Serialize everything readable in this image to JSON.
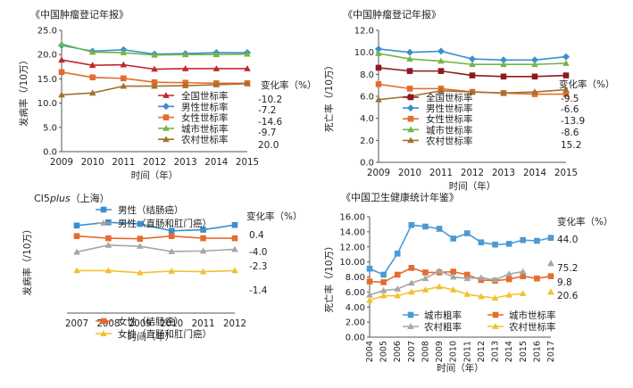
{
  "chart_data": [
    {
      "type": "line",
      "title": "《中国肿瘤登记年报》",
      "xlabel": "时间（年）",
      "ylabel": "发病率（/10万）",
      "ylim": [
        0,
        25
      ],
      "yticks": [
        "0.0",
        "5.0",
        "10.0",
        "15.0",
        "20.0",
        "25.0"
      ],
      "x": [
        "2009",
        "2010",
        "2011",
        "2012",
        "2013",
        "2014",
        "2015"
      ],
      "change_header": "变化率（%）",
      "series": [
        {
          "name": "全国世标率",
          "color": "#c0282d",
          "marker": "triangle",
          "values": [
            18.9,
            17.8,
            17.9,
            17.0,
            17.1,
            17.1,
            17.1
          ],
          "change": "-10.2"
        },
        {
          "name": "男性世标率",
          "color": "#3a8fd1",
          "marker": "diamond",
          "values": [
            21.9,
            20.7,
            21.0,
            20.1,
            20.2,
            20.4,
            20.4
          ],
          "change": "-7.2"
        },
        {
          "name": "女性世标率",
          "color": "#e46c2f",
          "marker": "square",
          "values": [
            16.4,
            15.3,
            15.1,
            14.3,
            14.2,
            14.1,
            14.1
          ],
          "change": "-14.6"
        },
        {
          "name": "城市世标率",
          "color": "#74b545",
          "marker": "triangle",
          "values": [
            22.2,
            20.5,
            20.4,
            19.9,
            20.0,
            20.0,
            20.1
          ],
          "change": "-9.7"
        },
        {
          "name": "农村世标率",
          "color": "#a0722e",
          "marker": "triangle",
          "values": [
            11.7,
            12.1,
            13.5,
            13.5,
            13.6,
            13.8,
            14.0
          ],
          "change": "20.0"
        }
      ]
    },
    {
      "type": "line",
      "title": "《中国肿瘤登记年报》",
      "xlabel": "时间（年）",
      "ylabel": "死亡率（/10万）",
      "ylim": [
        0,
        12
      ],
      "yticks": [
        "0.0",
        "2.0",
        "4.0",
        "6.0",
        "8.0",
        "10.0",
        "12.0"
      ],
      "x": [
        "2009",
        "2010",
        "2011",
        "2012",
        "2013",
        "2014",
        "2015"
      ],
      "change_header": "变化率（%）",
      "series": [
        {
          "name": "全国世标率",
          "color": "#8b1a1f",
          "marker": "square",
          "values": [
            8.6,
            8.3,
            8.3,
            7.9,
            7.8,
            7.8,
            7.9
          ],
          "change": "-9.5"
        },
        {
          "name": "男性世标率",
          "color": "#3a8fd1",
          "marker": "diamond",
          "values": [
            10.3,
            10.0,
            10.1,
            9.4,
            9.3,
            9.3,
            9.6
          ],
          "change": "-6.6"
        },
        {
          "name": "女性世标率",
          "color": "#e46c2f",
          "marker": "square",
          "values": [
            7.1,
            6.7,
            6.7,
            6.4,
            6.3,
            6.2,
            6.2
          ],
          "change": "-13.9"
        },
        {
          "name": "城市世标率",
          "color": "#74b545",
          "marker": "triangle",
          "values": [
            9.9,
            9.4,
            9.2,
            8.9,
            8.9,
            8.9,
            9.0
          ],
          "change": "-8.6"
        },
        {
          "name": "农村世标率",
          "color": "#a0722e",
          "marker": "triangle",
          "values": [
            5.7,
            6.0,
            6.5,
            6.4,
            6.3,
            6.4,
            6.6
          ],
          "change": "15.2"
        }
      ]
    },
    {
      "type": "line",
      "title_parts": [
        "CI5",
        "plus",
        "（上海）"
      ],
      "xlabel": "时间（年）",
      "ylabel": "发病率（/10万）",
      "ylim": [
        0,
        20
      ],
      "x": [
        "2007",
        "2008",
        "2009",
        "2010",
        "2011",
        "2012"
      ],
      "change_header": "变化率（%）",
      "series": [
        {
          "name": "男性（结肠癌）",
          "color": "#3a8fd1",
          "marker": "square",
          "values": [
            16.5,
            17.1,
            16.8,
            15.5,
            15.7,
            16.6
          ],
          "change": "0.4"
        },
        {
          "name": "男性（直肠和肛门癌）",
          "color": "#a6a6a6",
          "marker": "triangle",
          "values": [
            11.5,
            12.8,
            12.6,
            11.6,
            11.7,
            12.0
          ],
          "change": "-4.0"
        },
        {
          "name": "女性（结肠癌）",
          "color": "#e46c2f",
          "marker": "square",
          "values": [
            14.5,
            14.1,
            14.0,
            14.5,
            14.1,
            14.1
          ],
          "change": "-2.3"
        },
        {
          "name": "女性（直肠和肛门癌）",
          "color": "#f2c12e",
          "marker": "triangle",
          "values": [
            8.0,
            8.0,
            7.6,
            7.9,
            7.8,
            8.0
          ],
          "change": "-1.4"
        }
      ]
    },
    {
      "type": "line",
      "title": "《中国卫生健康统计年鉴》",
      "xlabel": "时间（年）",
      "ylabel": "死亡率（/10万）",
      "ylim": [
        0,
        16
      ],
      "yticks": [
        "0.00",
        "2.00",
        "4.00",
        "6.00",
        "8.00",
        "10.00",
        "12.00",
        "14.00",
        "16.00"
      ],
      "x": [
        "2004",
        "2005",
        "2006",
        "2007",
        "2008",
        "2009",
        "2010",
        "2011",
        "2012",
        "2013",
        "2014",
        "2015",
        "2016",
        "2017"
      ],
      "change_header": "变化率（%）",
      "series": [
        {
          "name": "城市粗率",
          "color": "#4a9ad4",
          "marker": "square",
          "values": [
            9.1,
            8.3,
            11.1,
            14.9,
            14.7,
            14.4,
            13.1,
            13.8,
            12.6,
            12.3,
            12.4,
            12.9,
            12.8,
            13.2
          ],
          "change": "44.0"
        },
        {
          "name": "城市世标率",
          "color": "#e46c2f",
          "marker": "square",
          "values": [
            7.4,
            7.3,
            8.3,
            9.2,
            8.6,
            8.6,
            8.7,
            8.3,
            7.6,
            7.5,
            7.7,
            8.1,
            7.8,
            8.1
          ],
          "change": "9.8"
        },
        {
          "name": "农村粗率",
          "color": "#a6a6a6",
          "marker": "triangle",
          "values": [
            5.6,
            6.2,
            6.4,
            7.2,
            7.8,
            8.8,
            8.0,
            7.8,
            7.9,
            7.6,
            8.4,
            8.7,
            null,
            9.8
          ],
          "change": "75.2"
        },
        {
          "name": "农村世标率",
          "color": "#f2c12e",
          "marker": "triangle",
          "values": [
            4.9,
            5.5,
            5.5,
            6.0,
            6.3,
            6.7,
            6.3,
            5.7,
            5.4,
            5.2,
            5.6,
            5.8,
            null,
            6.0
          ],
          "change": "20.6"
        }
      ]
    }
  ]
}
